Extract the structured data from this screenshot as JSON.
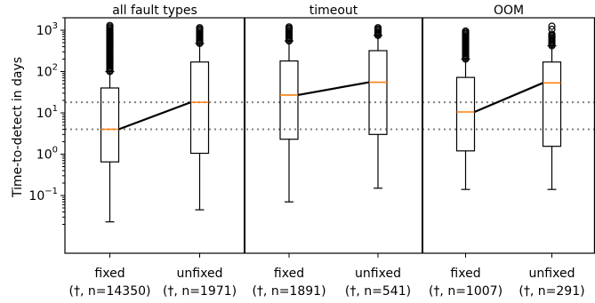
{
  "chart_data": {
    "type": "box",
    "ylabel": "Time-to-detect in days",
    "yscale": "log",
    "ylim": [
      0.004,
      2000
    ],
    "yticks": [
      {
        "value": 0.1,
        "base": "10",
        "exp": "−1"
      },
      {
        "value": 1,
        "base": "10",
        "exp": "0"
      },
      {
        "value": 10,
        "base": "10",
        "exp": "1"
      },
      {
        "value": 100,
        "base": "10",
        "exp": "2"
      },
      {
        "value": 1000,
        "base": "10",
        "exp": "3"
      }
    ],
    "reference_lines": [
      4,
      18
    ],
    "colors": {
      "median": "#ff7f0e",
      "reference": "#808080"
    },
    "panels": [
      {
        "title": "all fault types",
        "boxes": [
          {
            "label": "fixed",
            "sublabel": "(†, n=14350)",
            "whisker_low": 0.023,
            "q1": 0.65,
            "median": 4,
            "q3": 40,
            "whisker_high": 1300,
            "outliers_from": 100,
            "outliers_to": 1300,
            "sparse_top": []
          },
          {
            "label": "unfixed",
            "sublabel": "(†, n=1971)",
            "whisker_low": 0.045,
            "q1": 1.05,
            "median": 18,
            "q3": 170,
            "whisker_high": 1150,
            "outliers_from": 480,
            "outliers_to": 1150,
            "sparse_top": []
          }
        ]
      },
      {
        "title": "timeout",
        "boxes": [
          {
            "label": "fixed",
            "sublabel": "(†, n=1891)",
            "whisker_low": 0.07,
            "q1": 2.3,
            "median": 27,
            "q3": 180,
            "whisker_high": 1200,
            "outliers_from": 550,
            "outliers_to": 1200,
            "sparse_top": []
          },
          {
            "label": "unfixed",
            "sublabel": "(†, n=541)",
            "whisker_low": 0.15,
            "q1": 3,
            "median": 55,
            "q3": 320,
            "whisker_high": 1150,
            "outliers_from": 750,
            "outliers_to": 1150,
            "sparse_top": []
          }
        ]
      },
      {
        "title": "OOM",
        "boxes": [
          {
            "label": "fixed",
            "sublabel": "(†, n=1007)",
            "whisker_low": 0.14,
            "q1": 1.2,
            "median": 10.5,
            "q3": 72,
            "whisker_high": 1000,
            "outliers_from": 200,
            "outliers_to": 950,
            "sparse_top": []
          },
          {
            "label": "unfixed",
            "sublabel": "(†, n=291)",
            "whisker_low": 0.14,
            "q1": 1.55,
            "median": 53,
            "q3": 170,
            "whisker_high": 1250,
            "outliers_from": 420,
            "outliers_to": 800,
            "sparse_top": [
              1050,
              1250
            ]
          }
        ]
      }
    ]
  }
}
